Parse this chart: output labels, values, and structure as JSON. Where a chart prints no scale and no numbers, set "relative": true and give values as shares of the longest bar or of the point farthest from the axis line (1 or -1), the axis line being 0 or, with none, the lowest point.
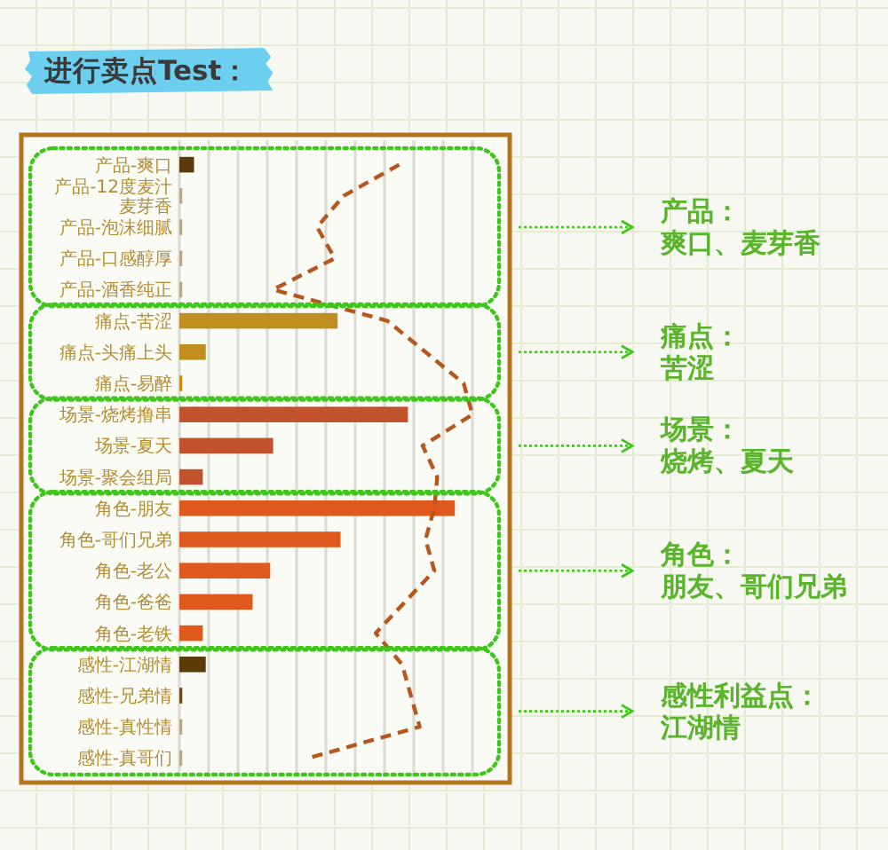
{
  "chart_data": {
    "type": "bar",
    "title": "进行卖点Test：",
    "orientation": "horizontal",
    "relative": true,
    "grid": "x",
    "line_style": "dashed",
    "categories": [
      "产品-爽口",
      "产品-12度麦汁麦芽香",
      "产品-泡沫细腻",
      "产品-口感醇厚",
      "产品-酒香纯正",
      "痛点-苦涩",
      "痛点-头痛上头",
      "痛点-易醉",
      "场景-烧烤撸串",
      "场景-夏天",
      "场景-聚会组局",
      "角色-朋友",
      "角色-哥们兄弟",
      "角色-老公",
      "角色-爸爸",
      "角色-老铁",
      "感性-江湖情",
      "感性-兄弟情",
      "感性-真性情",
      "感性-真哥们"
    ],
    "series": [
      {
        "type": "bar",
        "colors": [
          "#5c3b0b",
          "#b9a98c",
          "#b9a98c",
          "#b9a98c",
          "#b9a98c",
          "#c08e1e",
          "#c08e1e",
          "#c08e1e",
          "#c0532b",
          "#c0532b",
          "#c0532b",
          "#e0591c",
          "#e0591c",
          "#e0591c",
          "#e0591c",
          "#e0591c",
          "#5c3b0b",
          "#6b4a1a",
          "#b9a98c",
          "#b9a98c"
        ],
        "values": [
          0.05,
          0.01,
          0.01,
          0.01,
          0.01,
          0.54,
          0.09,
          0.01,
          0.78,
          0.32,
          0.08,
          0.94,
          0.55,
          0.31,
          0.25,
          0.08,
          0.09,
          0.01,
          0.01,
          0.01
        ]
      },
      {
        "type": "line",
        "color": "#b5581f",
        "values": [
          0.75,
          0.56,
          0.47,
          0.53,
          0.32,
          0.71,
          0.84,
          0.97,
          1.0,
          0.83,
          0.88,
          0.87,
          0.84,
          0.87,
          0.77,
          0.67,
          0.76,
          0.79,
          0.82,
          0.44
        ]
      }
    ],
    "annotations": [
      "产品：爽口、麦芽香",
      "痛点：苦涩",
      "场景：烧烤、夏天",
      "角色：朋友、哥们兄弟",
      "感性利益点：江湖情"
    ]
  }
}
